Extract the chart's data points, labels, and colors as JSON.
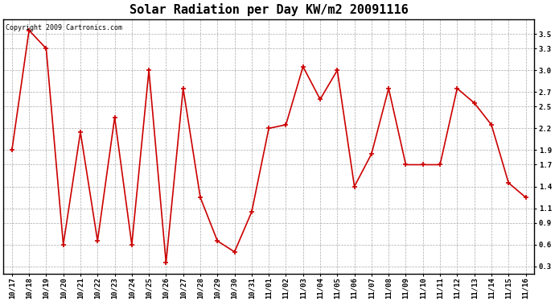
{
  "title": "Solar Radiation per Day KW/m2 20091116",
  "copyright_text": "Copyright 2009 Cartronics.com",
  "x_labels": [
    "10/17",
    "10/18",
    "10/19",
    "10/20",
    "10/21",
    "10/22",
    "10/23",
    "10/24",
    "10/25",
    "10/26",
    "10/27",
    "10/28",
    "10/29",
    "10/30",
    "10/31",
    "11/01",
    "11/02",
    "11/03",
    "11/04",
    "11/05",
    "11/06",
    "11/07",
    "11/08",
    "11/09",
    "11/10",
    "11/11",
    "11/12",
    "11/13",
    "11/14",
    "11/15",
    "11/16"
  ],
  "y_values": [
    1.9,
    3.55,
    3.3,
    0.6,
    2.15,
    0.65,
    2.35,
    0.6,
    3.0,
    0.35,
    2.75,
    1.25,
    0.65,
    0.5,
    1.05,
    2.2,
    2.25,
    3.05,
    2.6,
    3.0,
    1.4,
    1.85,
    2.75,
    1.7,
    1.7,
    1.7,
    2.75,
    2.55,
    2.25,
    1.45,
    1.25
  ],
  "ylim": [
    0.2,
    3.7
  ],
  "yticks": [
    0.3,
    0.6,
    0.9,
    1.1,
    1.4,
    1.7,
    1.9,
    2.2,
    2.5,
    2.7,
    3.0,
    3.3,
    3.5
  ],
  "line_color": "#cc0000",
  "marker": "+",
  "marker_size": 4,
  "marker_linewidth": 1.2,
  "line_width": 1.2,
  "bg_color": "#ffffff",
  "grid_color": "#aaaaaa",
  "title_fontsize": 11,
  "tick_fontsize": 6.5,
  "copyright_fontsize": 6
}
